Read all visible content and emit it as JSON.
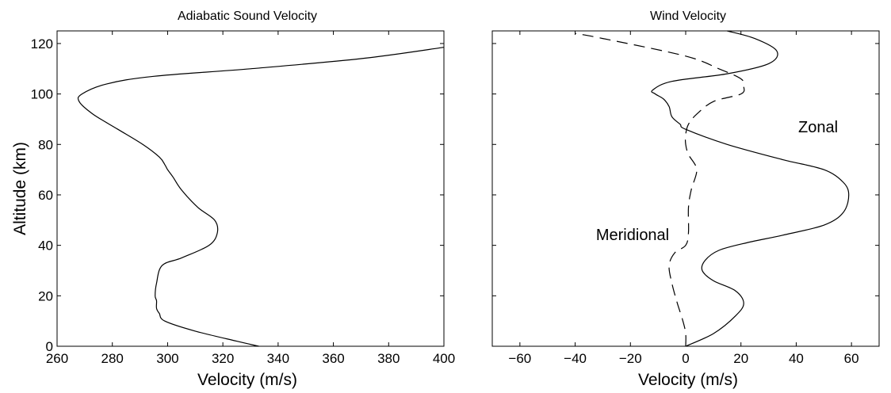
{
  "chart_data": [
    {
      "type": "line",
      "title": "Adiabatic Sound Velocity",
      "xlabel": "Velocity (m/s)",
      "ylabel": "Altitude (km)",
      "xlim": [
        260,
        400
      ],
      "ylim": [
        0,
        125
      ],
      "xticks": [
        260,
        280,
        300,
        320,
        340,
        360,
        380,
        400
      ],
      "yticks": [
        0,
        20,
        40,
        60,
        80,
        100,
        120
      ],
      "xtick_labels": [
        "260",
        "280",
        "300",
        "320",
        "340",
        "360",
        "380",
        "400"
      ],
      "ytick_labels": [
        "0",
        "20",
        "40",
        "60",
        "80",
        "100",
        "120"
      ],
      "grid": false,
      "series": [
        {
          "style": "solid",
          "x": [
            333,
            325,
            310,
            299,
            297,
            296,
            296,
            295.5,
            296,
            298,
            305,
            315,
            318,
            317,
            311,
            305,
            302,
            300,
            299,
            297,
            291,
            282,
            273,
            268,
            269,
            278,
            295,
            330,
            370,
            400
          ],
          "y": [
            0,
            2,
            6,
            10,
            13,
            15,
            18,
            20,
            25,
            32,
            35,
            40,
            45,
            50,
            55,
            62,
            67,
            70,
            72,
            75,
            80,
            86,
            92,
            97,
            100,
            104,
            107,
            110,
            114,
            118.5
          ]
        }
      ]
    },
    {
      "type": "line",
      "title": "Wind Velocity",
      "xlabel": "Velocity (m/s)",
      "ylabel": "",
      "xlim": [
        -70,
        70
      ],
      "ylim": [
        0,
        125
      ],
      "xticks": [
        -60,
        -40,
        -20,
        0,
        20,
        40,
        60
      ],
      "yticks": [
        0,
        20,
        40,
        60,
        80,
        100,
        120
      ],
      "xtick_labels": [
        "−60",
        "−40",
        "−20",
        "0",
        "20",
        "40",
        "60"
      ],
      "annotations": [
        {
          "text": "Zonal",
          "x": 35,
          "y": 85
        },
        {
          "text": "Meridional",
          "x": -36,
          "y": 44
        }
      ],
      "grid": false,
      "series": [
        {
          "label": "Zonal",
          "style": "solid",
          "x": [
            0,
            10,
            18,
            21,
            18,
            10,
            6,
            7,
            12,
            22,
            35,
            50,
            57,
            59,
            57,
            50,
            35,
            15,
            0,
            -2,
            -5,
            -6,
            -8,
            -11,
            -12,
            -5,
            15,
            30,
            33,
            25,
            15
          ],
          "y": [
            0,
            5,
            12,
            17,
            22,
            26,
            30,
            34,
            38,
            41,
            44,
            48,
            53,
            60,
            65,
            70,
            74,
            80,
            86,
            88,
            91,
            95,
            98,
            100,
            101.5,
            105,
            108,
            112,
            117,
            122,
            125
          ]
        },
        {
          "label": "Meridional",
          "style": "dashed",
          "x": [
            0,
            0,
            -1,
            -3,
            -5,
            -6,
            -4,
            0,
            1,
            1,
            2,
            4,
            1,
            0,
            0,
            1,
            4,
            10,
            20,
            21,
            20,
            12,
            0,
            -30,
            -40
          ],
          "y": [
            0,
            5,
            10,
            17,
            25,
            32,
            37,
            40,
            45,
            55,
            62,
            70,
            76,
            80,
            84,
            88,
            92,
            97,
            100,
            103,
            106,
            110,
            115,
            122,
            124
          ]
        }
      ]
    }
  ]
}
